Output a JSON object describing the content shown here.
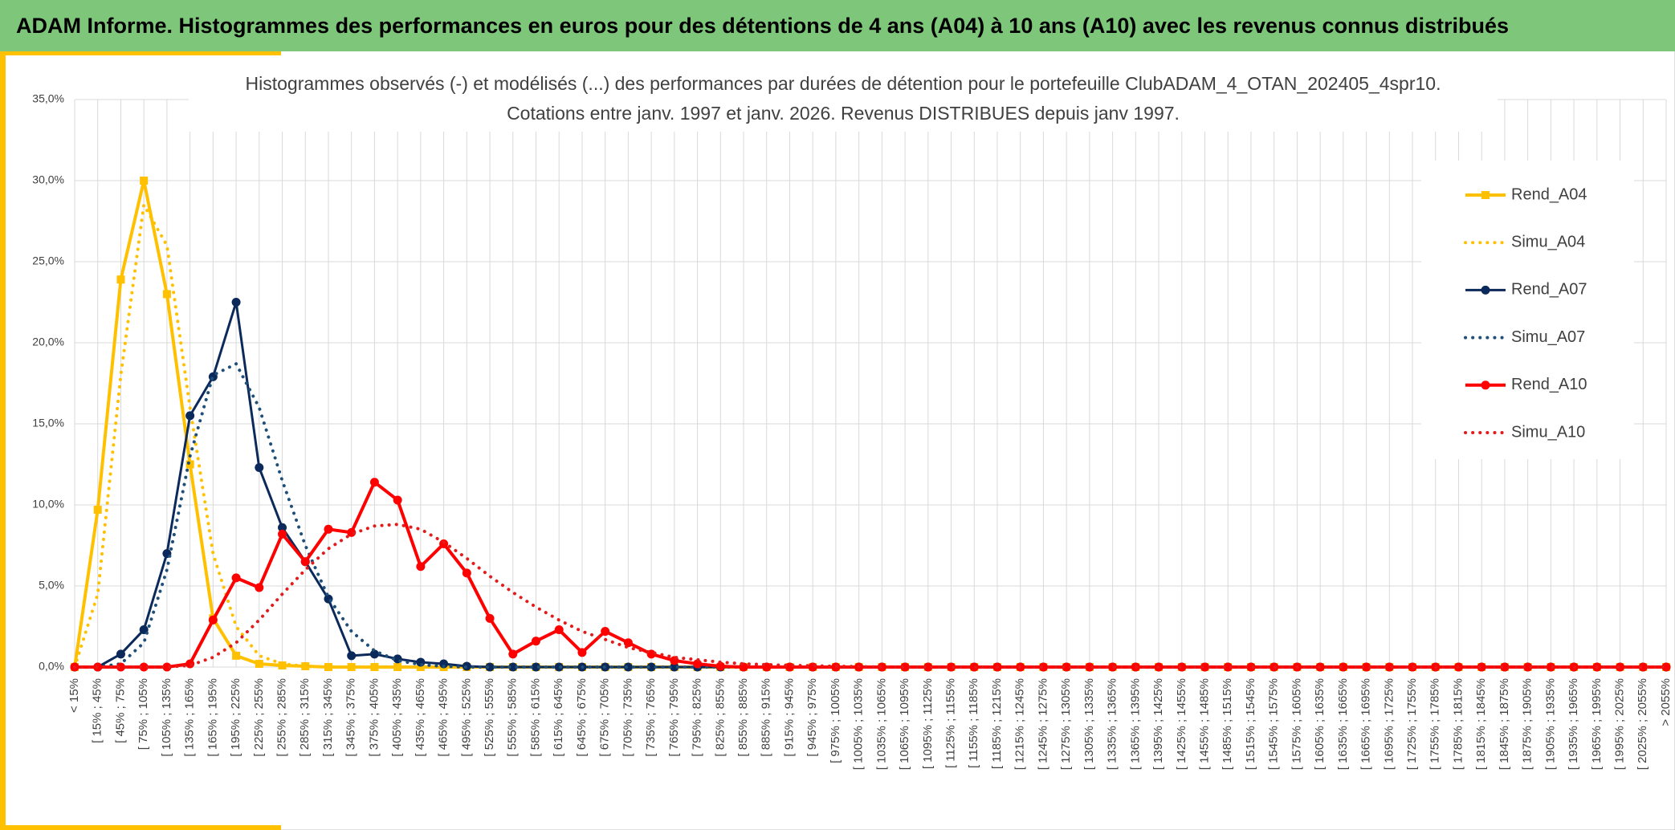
{
  "header": {
    "title": "ADAM Informe. Histogrammes des performances en euros pour des détentions de 4 ans (A04) à 10 ans (A10) avec les revenus connus distribués"
  },
  "chart_data": {
    "type": "line",
    "title": "Histogrammes observés (-) et modélisés (...) des performances par durées de détention pour le portefeuille ClubADAM_4_OTAN_202405_4spr10.",
    "subtitle": "Cotations entre janv. 1997 et janv. 2026. Revenus DISTRIBUES depuis janv 1997.",
    "categories": [
      "< 15%",
      "[ 15% ; 45%",
      "[ 45% ; 75%",
      "[ 75% ; 105%",
      "[ 105% ; 135%",
      "[ 135% ; 165%",
      "[ 165% ; 195%",
      "[ 195% ; 225%",
      "[ 225% ; 255%",
      "[ 255% ; 285%",
      "[ 285% ; 315%",
      "[ 315% ; 345%",
      "[ 345% ; 375%",
      "[ 375% ; 405%",
      "[ 405% ; 435%",
      "[ 435% ; 465%",
      "[ 465% ; 495%",
      "[ 495% ; 525%",
      "[ 525% ; 555%",
      "[ 555% ; 585%",
      "[ 585% ; 615%",
      "[ 615% ; 645%",
      "[ 645% ; 675%",
      "[ 675% ; 705%",
      "[ 705% ; 735%",
      "[ 735% ; 765%",
      "[ 765% ; 795%",
      "[ 795% ; 825%",
      "[ 825% ; 855%",
      "[ 855% ; 885%",
      "[ 885% ; 915%",
      "[ 915% ; 945%",
      "[ 945% ; 975%",
      "[ 975% ; 1005%",
      "[ 1005% ; 1035%",
      "[ 1035% ; 1065%",
      "[ 1065% ; 1095%",
      "[ 1095% ; 1125%",
      "[ 1125% ; 1155%",
      "[ 1155% ; 1185%",
      "[ 1185% ; 1215%",
      "[ 1215% ; 1245%",
      "[ 1245% ; 1275%",
      "[ 1275% ; 1305%",
      "[ 1305% ; 1335%",
      "[ 1335% ; 1365%",
      "[ 1365% ; 1395%",
      "[ 1395% ; 1425%",
      "[ 1425% ; 1455%",
      "[ 1455% ; 1485%",
      "[ 1485% ; 1515%",
      "[ 1515% ; 1545%",
      "[ 1545% ; 1575%",
      "[ 1575% ; 1605%",
      "[ 1605% ; 1635%",
      "[ 1635% ; 1665%",
      "[ 1665% ; 1695%",
      "[ 1695% ; 1725%",
      "[ 1725% ; 1755%",
      "[ 1755% ; 1785%",
      "[ 1785% ; 1815%",
      "[ 1815% ; 1845%",
      "[ 1845% ; 1875%",
      "[ 1875% ; 1905%",
      "[ 1905% ; 1935%",
      "[ 1935% ; 1965%",
      "[ 1965% ; 1995%",
      "[ 1995% ; 2025%",
      "[ 2025% ; 2055%",
      "> 2055%"
    ],
    "series": [
      {
        "name": "Rend_A04",
        "color": "#ffc000",
        "style": "solid",
        "marker": "square",
        "width": 4,
        "values": [
          0,
          9.7,
          23.9,
          30.0,
          23.0,
          12.5,
          3.0,
          0.7,
          0.2,
          0.1,
          0.05,
          0,
          0,
          0,
          0,
          0,
          0,
          0,
          0,
          0,
          0,
          0,
          0,
          0,
          0,
          0,
          0,
          0,
          0,
          0,
          0,
          0,
          0,
          0,
          0,
          0,
          0,
          0,
          0,
          0,
          0,
          0,
          0,
          0,
          0,
          0,
          0,
          0,
          0,
          0,
          0,
          0,
          0,
          0,
          0,
          0,
          0,
          0,
          0,
          0,
          0,
          0,
          0,
          0,
          0,
          0,
          0,
          0,
          0,
          0
        ]
      },
      {
        "name": "Simu_A04",
        "color": "#ffc000",
        "style": "dotted",
        "marker": "none",
        "width": 4,
        "values": [
          0,
          4.5,
          18,
          28.5,
          26,
          16,
          7,
          2.5,
          0.7,
          0.2,
          0.05,
          0,
          0,
          0,
          0,
          0,
          0,
          0,
          0,
          0,
          0,
          0,
          0,
          0,
          0,
          0,
          0,
          0,
          0,
          0,
          0,
          0,
          0,
          0,
          0,
          0,
          0,
          0,
          0,
          0,
          0,
          0,
          0,
          0,
          0,
          0,
          0,
          0,
          0,
          0,
          0,
          0,
          0,
          0,
          0,
          0,
          0,
          0,
          0,
          0,
          0,
          0,
          0,
          0,
          0,
          0,
          0,
          0,
          0,
          0
        ]
      },
      {
        "name": "Rend_A07",
        "color": "#0b2a5b",
        "style": "solid",
        "marker": "circle",
        "width": 3,
        "values": [
          0,
          0,
          0.8,
          2.3,
          7.0,
          15.5,
          17.9,
          22.5,
          12.3,
          8.6,
          6.5,
          4.2,
          0.7,
          0.8,
          0.5,
          0.3,
          0.2,
          0.05,
          0,
          0,
          0,
          0,
          0,
          0,
          0,
          0,
          0,
          0,
          0,
          0,
          0,
          0,
          0,
          0,
          0,
          0,
          0,
          0,
          0,
          0,
          0,
          0,
          0,
          0,
          0,
          0,
          0,
          0,
          0,
          0,
          0,
          0,
          0,
          0,
          0,
          0,
          0,
          0,
          0,
          0,
          0,
          0,
          0,
          0,
          0,
          0,
          0,
          0,
          0,
          0
        ]
      },
      {
        "name": "Simu_A07",
        "color": "#1f4e79",
        "style": "dotted",
        "marker": "none",
        "width": 4,
        "values": [
          0,
          0,
          0.2,
          1.5,
          6,
          13,
          18,
          18.7,
          16,
          11.5,
          7.5,
          4.3,
          2.2,
          1.0,
          0.4,
          0.15,
          0.05,
          0,
          0,
          0,
          0,
          0,
          0,
          0,
          0,
          0,
          0,
          0,
          0,
          0,
          0,
          0,
          0,
          0,
          0,
          0,
          0,
          0,
          0,
          0,
          0,
          0,
          0,
          0,
          0,
          0,
          0,
          0,
          0,
          0,
          0,
          0,
          0,
          0,
          0,
          0,
          0,
          0,
          0,
          0,
          0,
          0,
          0,
          0,
          0,
          0,
          0,
          0,
          0,
          0
        ]
      },
      {
        "name": "Rend_A10",
        "color": "#ff0000",
        "style": "solid",
        "marker": "circle",
        "width": 4,
        "values": [
          0,
          0,
          0,
          0,
          0,
          0.2,
          2.9,
          5.5,
          4.9,
          8.2,
          6.5,
          8.5,
          8.3,
          11.4,
          10.3,
          6.2,
          7.6,
          5.8,
          3.0,
          0.8,
          1.6,
          2.3,
          0.9,
          2.2,
          1.5,
          0.8,
          0.4,
          0.2,
          0.05,
          0,
          0,
          0,
          0,
          0,
          0,
          0,
          0,
          0,
          0,
          0,
          0,
          0,
          0,
          0,
          0,
          0,
          0,
          0,
          0,
          0,
          0,
          0,
          0,
          0,
          0,
          0,
          0,
          0,
          0,
          0,
          0,
          0,
          0,
          0,
          0,
          0,
          0,
          0,
          0,
          0
        ]
      },
      {
        "name": "Simu_A10",
        "color": "#e31b1b",
        "style": "dotted",
        "marker": "none",
        "width": 4,
        "values": [
          0,
          0,
          0,
          0,
          0,
          0.1,
          0.6,
          1.5,
          2.9,
          4.5,
          6.0,
          7.3,
          8.2,
          8.7,
          8.8,
          8.5,
          7.7,
          6.7,
          5.6,
          4.6,
          3.7,
          2.9,
          2.2,
          1.7,
          1.2,
          0.9,
          0.6,
          0.45,
          0.3,
          0.2,
          0.15,
          0.1,
          0.08,
          0.05,
          0.03,
          0,
          0,
          0,
          0,
          0,
          0,
          0,
          0,
          0,
          0,
          0,
          0,
          0,
          0,
          0,
          0,
          0,
          0,
          0,
          0,
          0,
          0,
          0,
          0,
          0,
          0,
          0,
          0,
          0,
          0,
          0,
          0,
          0,
          0,
          0
        ]
      }
    ],
    "ylim": [
      0,
      35
    ],
    "yticks": [
      {
        "value": 0,
        "label": "0,0%"
      },
      {
        "value": 5,
        "label": "5,0%"
      },
      {
        "value": 10,
        "label": "10,0%"
      },
      {
        "value": 15,
        "label": "15,0%"
      },
      {
        "value": 20,
        "label": "20,0%"
      },
      {
        "value": 25,
        "label": "25,0%"
      },
      {
        "value": 30,
        "label": "30,0%"
      },
      {
        "value": 35,
        "label": "35,0%"
      }
    ],
    "grid": true,
    "legend": "right"
  }
}
